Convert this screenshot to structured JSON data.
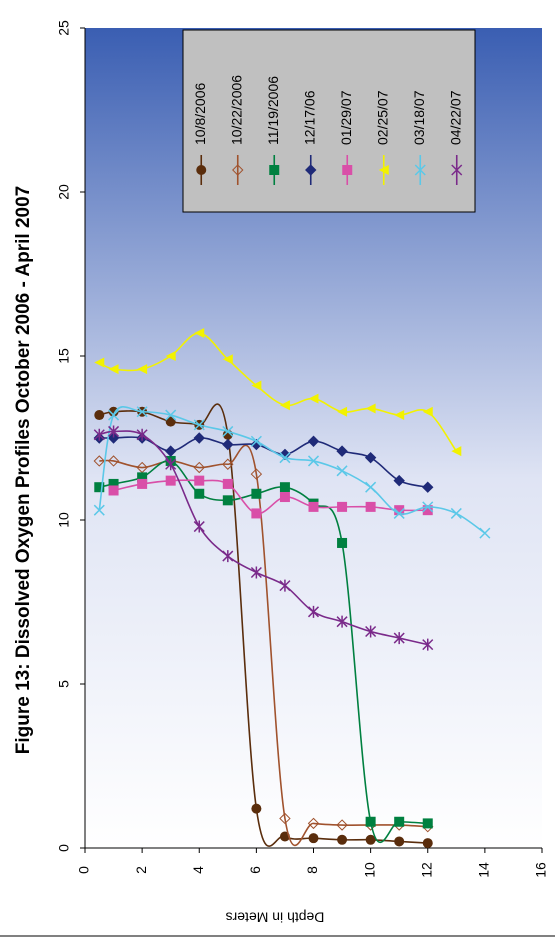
{
  "chart_data": {
    "type": "line",
    "title": "Figure 13:  Dissolved Oxygen Profiles October 2006 - April 2007",
    "x_label": "Depth in Meters",
    "xlim": [
      0,
      16
    ],
    "xticks": [
      0,
      2,
      4,
      6,
      8,
      10,
      12,
      14,
      16
    ],
    "ylim": [
      0,
      25
    ],
    "yticks": [
      0,
      5,
      10,
      15,
      20,
      25
    ],
    "series": [
      {
        "name": "10/8/2006",
        "color": "#5a2d0c",
        "marker": "circle",
        "x": [
          0.5,
          1,
          2,
          3,
          4,
          5,
          6,
          7,
          8,
          9,
          10,
          11,
          12
        ],
        "values": [
          13.2,
          13.3,
          13.3,
          13.0,
          12.9,
          12.6,
          1.2,
          0.35,
          0.3,
          0.25,
          0.25,
          0.2,
          0.15
        ]
      },
      {
        "name": "10/22/2006",
        "color": "#a0522d",
        "marker": "open-diamond",
        "x": [
          0.5,
          1,
          2,
          3,
          4,
          5,
          6,
          7,
          8,
          9,
          10,
          11,
          12
        ],
        "values": [
          11.8,
          11.8,
          11.6,
          11.8,
          11.6,
          11.7,
          11.4,
          0.9,
          0.75,
          0.7,
          0.7,
          0.7,
          0.65
        ]
      },
      {
        "name": "11/19/2006",
        "color": "#008040",
        "marker": "square",
        "x": [
          0.5,
          1,
          2,
          3,
          4,
          5,
          6,
          7,
          8,
          9,
          10,
          11,
          12
        ],
        "values": [
          11.0,
          11.1,
          11.3,
          11.8,
          10.8,
          10.6,
          10.8,
          11.0,
          10.5,
          9.3,
          0.8,
          0.8,
          0.75
        ]
      },
      {
        "name": "12/17/06",
        "color": "#1f2a78",
        "marker": "diamond",
        "x": [
          0.5,
          1,
          2,
          3,
          4,
          5,
          6,
          7,
          8,
          9,
          10,
          11,
          12
        ],
        "values": [
          12.5,
          12.5,
          12.5,
          12.1,
          12.5,
          12.3,
          12.3,
          12.0,
          12.4,
          12.1,
          11.9,
          11.2,
          11.0
        ]
      },
      {
        "name": "01/29/07",
        "color": "#d94fa8",
        "marker": "square",
        "x": [
          1,
          2,
          3,
          4,
          5,
          6,
          7,
          8,
          9,
          10,
          11,
          12
        ],
        "values": [
          10.9,
          11.1,
          11.2,
          11.2,
          11.1,
          10.2,
          10.7,
          10.4,
          10.4,
          10.4,
          10.3,
          10.3
        ]
      },
      {
        "name": "02/25/07",
        "color": "#f2f200",
        "marker": "triangle",
        "x": [
          0.5,
          1,
          2,
          3,
          4,
          5,
          6,
          7,
          8,
          9,
          10,
          11,
          12,
          13
        ],
        "values": [
          14.8,
          14.6,
          14.6,
          15.0,
          15.7,
          14.9,
          14.1,
          13.5,
          13.7,
          13.3,
          13.4,
          13.2,
          13.3,
          12.1
        ]
      },
      {
        "name": "03/18/07",
        "color": "#5bc8e8",
        "marker": "x",
        "x": [
          0.5,
          1,
          2,
          3,
          4,
          5,
          6,
          7,
          8,
          9,
          10,
          11,
          12,
          13,
          14
        ],
        "values": [
          10.3,
          13.2,
          13.3,
          13.2,
          12.9,
          12.7,
          12.4,
          11.9,
          11.8,
          11.5,
          11.0,
          10.2,
          10.4,
          10.2,
          9.6
        ]
      },
      {
        "name": "04/22/07",
        "color": "#7a2a8a",
        "marker": "star",
        "x": [
          0.5,
          1,
          2,
          3,
          4,
          5,
          6,
          7,
          8,
          9,
          10,
          11,
          12
        ],
        "values": [
          12.6,
          12.7,
          12.6,
          11.7,
          9.8,
          8.9,
          8.4,
          8.0,
          7.2,
          6.9,
          6.6,
          6.4,
          6.2
        ]
      }
    ]
  }
}
